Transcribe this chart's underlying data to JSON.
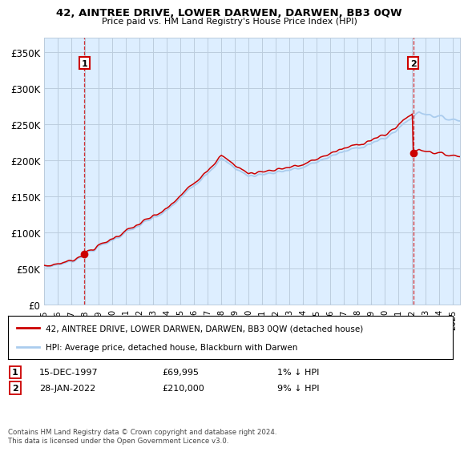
{
  "title": "42, AINTREE DRIVE, LOWER DARWEN, DARWEN, BB3 0QW",
  "subtitle": "Price paid vs. HM Land Registry's House Price Index (HPI)",
  "ylabel_ticks": [
    "£0",
    "£50K",
    "£100K",
    "£150K",
    "£200K",
    "£250K",
    "£300K",
    "£350K"
  ],
  "ytick_values": [
    0,
    50000,
    100000,
    150000,
    200000,
    250000,
    300000,
    350000
  ],
  "ylim": [
    0,
    370000
  ],
  "xlim_start": 1995.0,
  "xlim_end": 2025.5,
  "sale1_x": 1997.96,
  "sale1_y": 69995,
  "sale2_x": 2022.08,
  "sale2_y": 210000,
  "sale_color": "#cc0000",
  "hpi_color": "#aaccee",
  "line_color": "#cc0000",
  "dashed_color": "#cc0000",
  "plot_bg_color": "#ddeeff",
  "legend_entry1": "42, AINTREE DRIVE, LOWER DARWEN, DARWEN, BB3 0QW (detached house)",
  "legend_entry2": "HPI: Average price, detached house, Blackburn with Darwen",
  "annotation1_label": "1",
  "annotation2_label": "2",
  "table_row1": [
    "1",
    "15-DEC-1997",
    "£69,995",
    "1% ↓ HPI"
  ],
  "table_row2": [
    "2",
    "28-JAN-2022",
    "£210,000",
    "9% ↓ HPI"
  ],
  "footer": "Contains HM Land Registry data © Crown copyright and database right 2024.\nThis data is licensed under the Open Government Licence v3.0.",
  "bg_color": "#ffffff",
  "grid_color": "#bbccdd",
  "xtick_years": [
    1995,
    1996,
    1997,
    1998,
    1999,
    2000,
    2001,
    2002,
    2003,
    2004,
    2005,
    2006,
    2007,
    2008,
    2009,
    2010,
    2011,
    2012,
    2013,
    2014,
    2015,
    2016,
    2017,
    2018,
    2019,
    2020,
    2021,
    2022,
    2023,
    2024,
    2025
  ]
}
